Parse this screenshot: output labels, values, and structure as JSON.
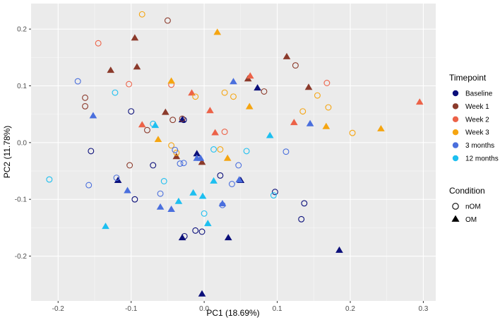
{
  "chart_data": {
    "type": "scatter",
    "title": "",
    "xlabel": "PC1 (18.69%)",
    "ylabel": "PC2 (11.78%)",
    "xlim": [
      -0.237,
      0.317
    ],
    "ylim": [
      -0.279,
      0.245
    ],
    "x_ticks": [
      -0.2,
      -0.1,
      0.0,
      0.1,
      0.2,
      0.3
    ],
    "x_tick_labels": [
      "-0.2",
      "-0.1",
      "0.0",
      "0.1",
      "0.2",
      "0.3"
    ],
    "y_ticks": [
      -0.2,
      -0.1,
      0.0,
      0.1,
      0.2
    ],
    "y_tick_labels": [
      "-0.2",
      "-0.1",
      "0.0",
      "0.1",
      "0.2"
    ],
    "grid": true,
    "panel_background": "#ebebeb",
    "grid_color": "#ffffff",
    "legend_placement": "right",
    "legend_timepoint": {
      "title": "Timepoint",
      "entries": [
        {
          "label": "Baseline",
          "color": "#0b0f7a"
        },
        {
          "label": "Week 1",
          "color": "#8b3a2b"
        },
        {
          "label": "Week 2",
          "color": "#ec6248"
        },
        {
          "label": "Week 3",
          "color": "#f5a511"
        },
        {
          "label": "3 months",
          "color": "#4a6fdd"
        },
        {
          "label": "12 months",
          "color": "#1dbff0"
        }
      ]
    },
    "legend_condition": {
      "title": "Condition",
      "entries": [
        {
          "label": "nOM",
          "shape": "circle"
        },
        {
          "label": "OM",
          "shape": "triangle"
        }
      ]
    },
    "series": [
      {
        "timepoint": "Baseline",
        "condition": "nOM",
        "points": [
          [
            -0.1,
            0.055
          ],
          [
            -0.155,
            -0.015
          ],
          [
            -0.07,
            -0.04
          ],
          [
            -0.095,
            -0.1
          ],
          [
            -0.012,
            -0.155
          ],
          [
            -0.003,
            -0.157
          ],
          [
            -0.027,
            -0.165
          ],
          [
            0.022,
            -0.058
          ],
          [
            0.097,
            -0.087
          ],
          [
            0.137,
            -0.107
          ],
          [
            0.133,
            -0.135
          ],
          [
            -0.028,
            0.04
          ]
        ]
      },
      {
        "timepoint": "Baseline",
        "condition": "OM",
        "points": [
          [
            -0.118,
            -0.067
          ],
          [
            -0.01,
            -0.02
          ],
          [
            -0.03,
            0.04
          ],
          [
            0.073,
            0.096
          ],
          [
            0.05,
            -0.067
          ],
          [
            -0.03,
            -0.168
          ],
          [
            0.033,
            -0.168
          ],
          [
            0.185,
            -0.19
          ],
          [
            -0.003,
            -0.267
          ]
        ]
      },
      {
        "timepoint": "Week 1",
        "condition": "nOM",
        "points": [
          [
            -0.05,
            0.215
          ],
          [
            -0.163,
            0.079
          ],
          [
            -0.163,
            0.064
          ],
          [
            -0.043,
            0.04
          ],
          [
            -0.078,
            0.022
          ],
          [
            -0.03,
            0.042
          ],
          [
            0.082,
            0.09
          ],
          [
            0.125,
            0.136
          ],
          [
            -0.102,
            -0.04
          ]
        ]
      },
      {
        "timepoint": "Week 1",
        "condition": "OM",
        "points": [
          [
            -0.095,
            0.184
          ],
          [
            -0.128,
            0.127
          ],
          [
            -0.092,
            0.133
          ],
          [
            -0.038,
            -0.025
          ],
          [
            0.06,
            0.112
          ],
          [
            0.113,
            0.151
          ],
          [
            0.143,
            0.097
          ],
          [
            -0.053,
            0.053
          ],
          [
            -0.003,
            -0.035
          ]
        ]
      },
      {
        "timepoint": "Week 2",
        "condition": "nOM",
        "points": [
          [
            -0.145,
            0.175
          ],
          [
            -0.103,
            0.103
          ],
          [
            -0.045,
            0.102
          ],
          [
            0.028,
            0.019
          ],
          [
            0.168,
            0.105
          ]
        ]
      },
      {
        "timepoint": "Week 2",
        "condition": "OM",
        "points": [
          [
            -0.085,
            0.031
          ],
          [
            -0.017,
            0.087
          ],
          [
            0.008,
            0.056
          ],
          [
            0.015,
            0.017
          ],
          [
            0.063,
            0.117
          ],
          [
            0.123,
            0.035
          ],
          [
            0.295,
            0.071
          ]
        ]
      },
      {
        "timepoint": "Week 3",
        "condition": "nOM",
        "points": [
          [
            -0.085,
            0.226
          ],
          [
            -0.045,
            -0.005
          ],
          [
            -0.038,
            -0.018
          ],
          [
            -0.012,
            0.081
          ],
          [
            0.028,
            0.088
          ],
          [
            0.04,
            0.081
          ],
          [
            0.022,
            -0.012
          ],
          [
            0.135,
            0.055
          ],
          [
            0.155,
            0.083
          ],
          [
            0.17,
            0.062
          ],
          [
            0.203,
            0.017
          ]
        ]
      },
      {
        "timepoint": "Week 3",
        "condition": "OM",
        "points": [
          [
            0.018,
            0.194
          ],
          [
            -0.045,
            0.108
          ],
          [
            0.062,
            0.063
          ],
          [
            -0.063,
            0.005
          ],
          [
            0.032,
            -0.028
          ],
          [
            0.167,
            0.028
          ],
          [
            0.242,
            0.024
          ]
        ]
      },
      {
        "timepoint": "3 months",
        "condition": "nOM",
        "points": [
          [
            -0.173,
            0.108
          ],
          [
            -0.158,
            -0.075
          ],
          [
            -0.12,
            -0.062
          ],
          [
            -0.04,
            -0.013
          ],
          [
            -0.06,
            -0.09
          ],
          [
            -0.033,
            -0.037
          ],
          [
            -0.028,
            -0.036
          ],
          [
            0.025,
            -0.11
          ],
          [
            0.038,
            -0.073
          ],
          [
            0.047,
            -0.04
          ],
          [
            0.112,
            -0.016
          ]
        ]
      },
      {
        "timepoint": "3 months",
        "condition": "OM",
        "points": [
          [
            -0.152,
            0.047
          ],
          [
            -0.105,
            -0.085
          ],
          [
            -0.06,
            -0.114
          ],
          [
            -0.045,
            -0.118
          ],
          [
            -0.01,
            -0.028
          ],
          [
            0.04,
            0.107
          ],
          [
            0.048,
            -0.066
          ],
          [
            0.145,
            0.033
          ],
          [
            0.025,
            -0.108
          ],
          [
            -0.005,
            -0.028
          ]
        ]
      },
      {
        "timepoint": "12 months",
        "condition": "nOM",
        "points": [
          [
            -0.212,
            -0.065
          ],
          [
            -0.122,
            0.088
          ],
          [
            -0.07,
            0.033
          ],
          [
            -0.055,
            -0.068
          ],
          [
            0.0,
            -0.125
          ],
          [
            0.013,
            -0.012
          ],
          [
            0.058,
            -0.015
          ],
          [
            0.095,
            -0.093
          ]
        ]
      },
      {
        "timepoint": "12 months",
        "condition": "OM",
        "points": [
          [
            -0.135,
            -0.148
          ],
          [
            -0.035,
            -0.104
          ],
          [
            -0.015,
            -0.089
          ],
          [
            -0.002,
            -0.095
          ],
          [
            0.013,
            -0.068
          ],
          [
            0.005,
            -0.143
          ],
          [
            0.09,
            0.012
          ],
          [
            -0.067,
            0.03
          ]
        ]
      }
    ]
  }
}
